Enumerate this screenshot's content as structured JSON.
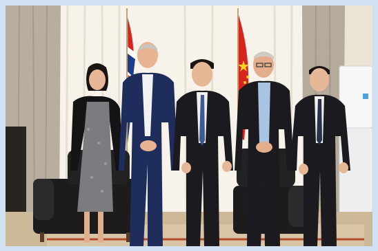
{
  "photo": {
    "scene": "group-photo",
    "colors": {
      "border": "#cfe1f2",
      "wall": "#efe7d8",
      "curtain_sheer": "#f6f2ea",
      "curtain_drape": "#b9b0a1",
      "carpet": "#d8c2a8",
      "floor": "#c9b59a",
      "sofa": "#1c1c1c",
      "suit_navy": "#1f2d5c",
      "suit_black": "#1a1a1f",
      "shirt_white": "#f2f2f2",
      "shirt_blue": "#a9c3e3",
      "flag_red": "#d8241f",
      "flag_star": "#f7d21e",
      "flag_white": "#ffffff",
      "flag_blue": "#1d3c8c",
      "skin": "#e6b896",
      "hair_dark": "#1a1512"
    },
    "people_count": 5
  }
}
